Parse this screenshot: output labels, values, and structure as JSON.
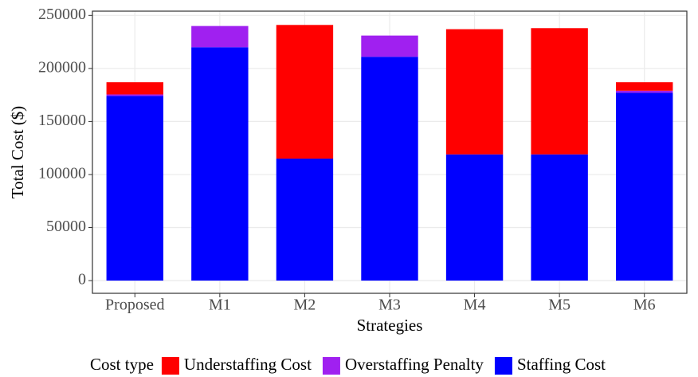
{
  "chart_data": {
    "type": "stacked_bar",
    "x_label": "Strategies",
    "y_label": "Total Cost ($)",
    "legend_title": "Cost type",
    "legend_position": "bottom",
    "grid": true,
    "categories": [
      "Proposed",
      "M1",
      "M2",
      "M3",
      "M4",
      "M5",
      "M6"
    ],
    "series": [
      {
        "name": "Understaffing Cost",
        "color": "#ff0000",
        "values": [
          11500,
          0,
          126000,
          0,
          118000,
          119000,
          8000
        ]
      },
      {
        "name": "Overstaffing Penalty",
        "color": "#a020f0",
        "values": [
          1500,
          20000,
          0,
          20000,
          0,
          0,
          2000
        ]
      },
      {
        "name": "Staffing Cost",
        "color": "#0000ff",
        "values": [
          174000,
          220000,
          115000,
          211000,
          119000,
          119000,
          177000
        ]
      }
    ],
    "ylim": [
      -12000,
      254000
    ],
    "yticks": [
      0,
      50000,
      100000,
      150000,
      200000,
      250000
    ]
  }
}
